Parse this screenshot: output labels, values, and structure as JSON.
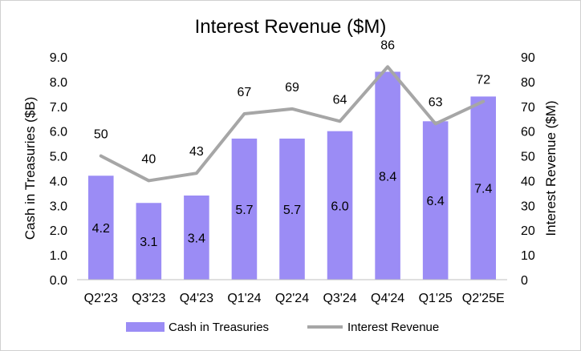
{
  "chart_data": {
    "type": "bar+line",
    "title": "Interest Revenue ($M)",
    "categories": [
      "Q2'23",
      "Q3'23",
      "Q4'23",
      "Q1'24",
      "Q2'24",
      "Q3'24",
      "Q4'24",
      "Q1'25",
      "Q2'25E"
    ],
    "series": [
      {
        "name": "Cash in Treasuries",
        "type": "bar",
        "axis": "left",
        "values": [
          4.2,
          3.1,
          3.4,
          5.7,
          5.7,
          6.0,
          8.4,
          6.4,
          7.4
        ],
        "labels": [
          "4.2",
          "3.1",
          "3.4",
          "5.7",
          "5.7",
          "6.0",
          "8.4",
          "6.4",
          "7.4"
        ],
        "color": "#9B8CF5"
      },
      {
        "name": "Interest Revenue",
        "type": "line",
        "axis": "right",
        "values": [
          50,
          40,
          43,
          67,
          69,
          64,
          86,
          63,
          72
        ],
        "labels": [
          "50",
          "40",
          "43",
          "67",
          "69",
          "64",
          "86",
          "63",
          "72"
        ],
        "color": "#A6A6A6"
      }
    ],
    "y_left": {
      "label": "Cash in Treasuries ($B)",
      "range": [
        0,
        9
      ],
      "ticks": [
        0,
        1,
        2,
        3,
        4,
        5,
        6,
        7,
        8,
        9
      ],
      "tick_labels": [
        "0.0",
        "1.0",
        "2.0",
        "3.0",
        "4.0",
        "5.0",
        "6.0",
        "7.0",
        "8.0",
        "9.0"
      ]
    },
    "y_right": {
      "label": "Interest Revenue ($M)",
      "range": [
        0,
        90
      ],
      "ticks": [
        0,
        10,
        20,
        30,
        40,
        50,
        60,
        70,
        80,
        90
      ],
      "tick_labels": [
        "0",
        "10",
        "20",
        "30",
        "40",
        "50",
        "60",
        "70",
        "80",
        "90"
      ]
    },
    "grid": false,
    "legend": {
      "position": "bottom",
      "entries": [
        "Cash in Treasuries",
        "Interest Revenue"
      ]
    }
  }
}
